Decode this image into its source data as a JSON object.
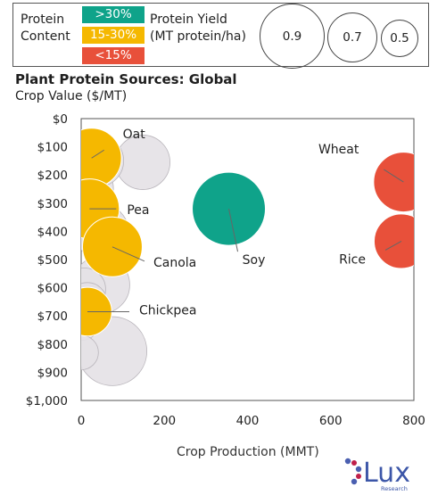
{
  "legend": {
    "content_label_1": "Protein",
    "content_label_2": "Content",
    "categories": [
      {
        "label": ">30%",
        "color": "#0fa38a"
      },
      {
        "label": "15-30%",
        "color": "#f5b800"
      },
      {
        "label": "<15%",
        "color": "#e8503a"
      }
    ],
    "yield_label_1": "Protein Yield",
    "yield_label_2": "(MT protein/ha)",
    "sizes": [
      "0.9",
      "0.7",
      "0.5"
    ]
  },
  "logo": {
    "name": "Lux",
    "sub": "Research"
  },
  "chart_data": {
    "type": "scatter",
    "title": "Plant Protein Sources: Global",
    "ylabel": "Crop Value ($/MT)",
    "xlabel": "Crop Production (MMT)",
    "xlim": [
      0,
      800
    ],
    "ylim": [
      0,
      1000
    ],
    "y_inverted": true,
    "x_ticks": [
      "0",
      "200",
      "400",
      "600",
      "800"
    ],
    "y_ticks": [
      "$0",
      "$100",
      "$200",
      "$300",
      "$400",
      "$500",
      "$600",
      "$700",
      "$800",
      "$900",
      "$1,000"
    ],
    "series": [
      {
        "name": "Soy",
        "category": ">30%",
        "x": 355,
        "y": 320,
        "size": 0.9,
        "label": "Soy"
      },
      {
        "name": "Oat",
        "category": "15-30%",
        "x": 25,
        "y": 140,
        "size": 0.6,
        "label": "Oat"
      },
      {
        "name": "Pea",
        "category": "15-30%",
        "x": 20,
        "y": 320,
        "size": 0.6,
        "label": "Pea"
      },
      {
        "name": "Canola",
        "category": "15-30%",
        "x": 75,
        "y": 455,
        "size": 0.6,
        "label": "Canola"
      },
      {
        "name": "Chickpea",
        "category": "15-30%",
        "x": 15,
        "y": 685,
        "size": 0.4,
        "label": "Chickpea"
      },
      {
        "name": "Wheat",
        "category": "<15%",
        "x": 775,
        "y": 225,
        "size": 0.6,
        "label": "Wheat"
      },
      {
        "name": "Rice",
        "category": "<15%",
        "x": 770,
        "y": 435,
        "size": 0.5,
        "label": "Rice"
      },
      {
        "name": "",
        "category": "other",
        "x": 0,
        "y": 250,
        "size": 0.7,
        "label": ""
      },
      {
        "name": "",
        "category": "other",
        "x": 40,
        "y": 150,
        "size": 0.45,
        "label": ""
      },
      {
        "name": "",
        "category": "other",
        "x": 148,
        "y": 155,
        "size": 0.5,
        "label": ""
      },
      {
        "name": "",
        "category": "other",
        "x": 48,
        "y": 400,
        "size": 0.5,
        "label": ""
      },
      {
        "name": "",
        "category": "other",
        "x": 48,
        "y": 590,
        "size": 0.55,
        "label": ""
      },
      {
        "name": "",
        "category": "other",
        "x": 8,
        "y": 605,
        "size": 0.3,
        "label": ""
      },
      {
        "name": "",
        "category": "other",
        "x": 15,
        "y": 650,
        "size": 0.25,
        "label": ""
      },
      {
        "name": "",
        "category": "other",
        "x": 2,
        "y": 725,
        "size": 0.2,
        "label": ""
      },
      {
        "name": "",
        "category": "other",
        "x": 75,
        "y": 825,
        "size": 0.8,
        "label": ""
      },
      {
        "name": "",
        "category": "other",
        "x": 0,
        "y": 830,
        "size": 0.2,
        "label": ""
      }
    ]
  }
}
